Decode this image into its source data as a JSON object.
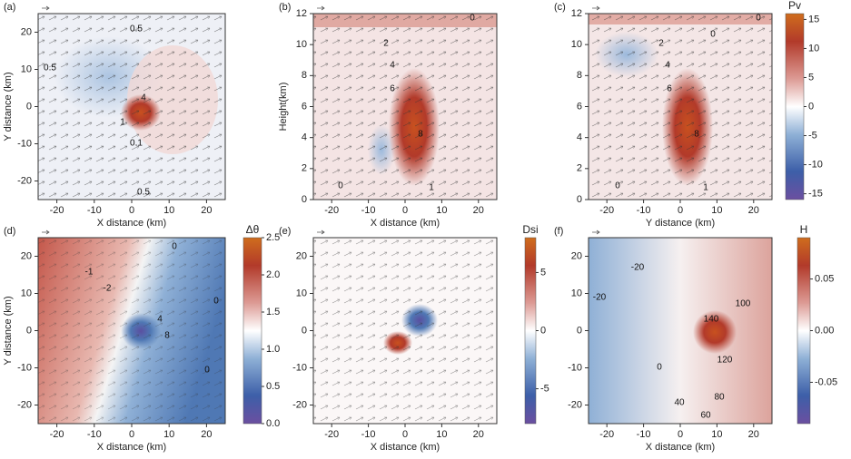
{
  "chart_data": [
    {
      "type": "heatmap",
      "panel_label": "(a)",
      "xlabel": "X distance (km)",
      "ylabel": "Y distance (km)",
      "xlim": [
        -25,
        25
      ],
      "ylim": [
        -25,
        25
      ],
      "xticks": [
        -20,
        -10,
        0,
        10,
        20
      ],
      "yticks": [
        -20,
        -10,
        0,
        10,
        20
      ],
      "contour_labels": [
        0.5,
        0.5,
        4,
        1,
        0.1,
        0.5
      ]
    },
    {
      "type": "heatmap",
      "panel_label": "(b)",
      "xlabel": "X distance (km)",
      "ylabel": "Height(km)",
      "xlim": [
        -25,
        25
      ],
      "ylim": [
        0,
        12
      ],
      "xticks": [
        -20,
        -10,
        0,
        10,
        20
      ],
      "yticks": [
        0,
        2,
        4,
        6,
        8,
        10,
        12
      ],
      "contour_labels": [
        0,
        2,
        4,
        6,
        8,
        1,
        0
      ]
    },
    {
      "type": "heatmap",
      "panel_label": "(c)",
      "xlabel": "Y distance (km)",
      "xlim": [
        -25,
        25
      ],
      "ylim": [
        0,
        12
      ],
      "xticks": [
        -20,
        -10,
        0,
        10,
        20
      ],
      "yticks": [
        0,
        2,
        4,
        6,
        8,
        10,
        12
      ],
      "contour_labels": [
        0,
        0,
        2,
        4,
        6,
        8,
        1,
        0
      ],
      "colorbar": {
        "title": "Pv",
        "lim": [
          -16,
          16
        ],
        "ticks": [
          -15,
          -10,
          -5,
          0,
          5,
          10,
          15
        ]
      }
    },
    {
      "type": "heatmap",
      "panel_label": "(d)",
      "xlabel": "X distance (km)",
      "ylabel": "Y distance (km)",
      "xlim": [
        -25,
        25
      ],
      "ylim": [
        -25,
        25
      ],
      "xticks": [
        -20,
        -10,
        0,
        10,
        20
      ],
      "yticks": [
        -20,
        -10,
        0,
        10,
        20
      ],
      "contour_labels": [
        0,
        -1,
        -2,
        4,
        8,
        0,
        0
      ],
      "colorbar": {
        "title": "Δθ",
        "lim": [
          0,
          2.5
        ],
        "ticks": [
          {
            "value": 0,
            "label": "0.0"
          },
          0.5,
          {
            "value": 1,
            "label": "1.0"
          },
          1.5,
          {
            "value": 2,
            "label": "2.0"
          },
          2.5
        ]
      }
    },
    {
      "type": "heatmap",
      "panel_label": "(e)",
      "xlabel": "X distance (km)",
      "xlim": [
        -25,
        25
      ],
      "ylim": [
        -25,
        25
      ],
      "xticks": [
        -20,
        -10,
        0,
        10,
        20
      ],
      "yticks": [
        -20,
        -10,
        0,
        10,
        20
      ],
      "colorbar": {
        "title": "Dsi",
        "lim": [
          -8,
          8
        ],
        "ticks": [
          -5,
          0,
          5
        ]
      }
    },
    {
      "type": "heatmap",
      "panel_label": "(f)",
      "xlabel": "X distance (km)",
      "xlim": [
        -25,
        25
      ],
      "ylim": [
        -25,
        25
      ],
      "xticks": [
        -20,
        -10,
        0,
        10,
        20
      ],
      "yticks": [
        -20,
        -10,
        0,
        10,
        20
      ],
      "contour_labels": [
        -20,
        -20,
        140,
        100,
        120,
        0,
        40,
        60,
        80
      ],
      "colorbar": {
        "title": "H",
        "lim": [
          -0.09,
          0.09
        ],
        "ticks": [
          -0.05,
          {
            "value": 0,
            "label": "0.00"
          },
          0.05
        ]
      }
    }
  ]
}
